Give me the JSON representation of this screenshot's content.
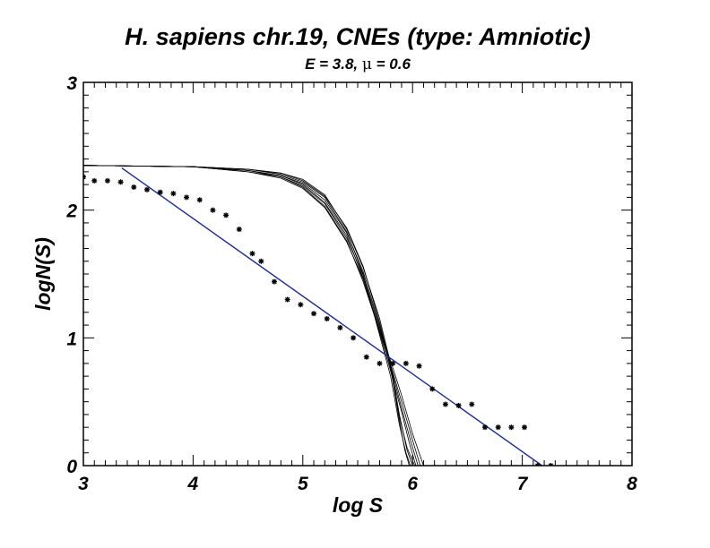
{
  "chart_data": {
    "type": "line",
    "title": "H. sapiens chr.19, CNEs (type: Amniotic)",
    "subtitle": {
      "prefix": "E = 3.8, ",
      "symbol": "μ",
      "suffix": " = 0.6"
    },
    "xlabel": "log S",
    "ylabel": "logN(S)",
    "xlim": [
      3,
      8
    ],
    "ylim": [
      0,
      3
    ],
    "x_ticks": [
      "3",
      "4",
      "5",
      "6",
      "7",
      "8"
    ],
    "y_ticks": [
      "0",
      "1",
      "2",
      "3"
    ],
    "colors": {
      "fit": "#1a2aa0",
      "model": "#000000",
      "points": "#000000"
    },
    "series": [
      {
        "kind": "scatter",
        "x": [
          3.0,
          3.1,
          3.22,
          3.34,
          3.46,
          3.58,
          3.7,
          3.82,
          3.94,
          4.06,
          4.18,
          4.3,
          4.42,
          4.54,
          4.62,
          4.74,
          4.86,
          4.98,
          5.1,
          5.22,
          5.34,
          5.46,
          5.58,
          5.7,
          5.82,
          5.94,
          6.06,
          6.18,
          6.3,
          6.42,
          6.54,
          6.66,
          6.78,
          6.9,
          7.02,
          7.14,
          7.26
        ],
        "y": [
          2.26,
          2.23,
          2.23,
          2.22,
          2.18,
          2.16,
          2.14,
          2.13,
          2.1,
          2.08,
          2.0,
          1.96,
          1.85,
          1.66,
          1.6,
          1.44,
          1.3,
          1.26,
          1.19,
          1.15,
          1.08,
          1.0,
          0.85,
          0.8,
          0.8,
          0.8,
          0.78,
          0.6,
          0.48,
          0.47,
          0.48,
          0.3,
          0.3,
          0.3,
          0.3,
          0.0,
          0.0
        ]
      },
      {
        "kind": "fit-line",
        "x": [
          3.35,
          7.18
        ],
        "y": [
          2.33,
          0.0
        ]
      },
      {
        "kind": "model-curves",
        "curves": [
          {
            "x": [
              3.0,
              4.0,
              4.5,
              4.8,
              5.0,
              5.2,
              5.4,
              5.55,
              5.7,
              5.8,
              5.88,
              5.95,
              6.0
            ],
            "y": [
              2.35,
              2.34,
              2.32,
              2.29,
              2.24,
              2.12,
              1.85,
              1.55,
              1.15,
              0.8,
              0.4,
              0.12,
              0.0
            ]
          },
          {
            "x": [
              3.0,
              4.0,
              4.5,
              4.8,
              5.0,
              5.2,
              5.4,
              5.55,
              5.7,
              5.8,
              5.88,
              5.95,
              6.02
            ],
            "y": [
              2.35,
              2.34,
              2.31,
              2.27,
              2.21,
              2.08,
              1.82,
              1.52,
              1.1,
              0.76,
              0.38,
              0.14,
              0.0
            ]
          },
          {
            "x": [
              3.0,
              4.0,
              4.5,
              4.8,
              5.0,
              5.2,
              5.4,
              5.55,
              5.7,
              5.8,
              5.9,
              5.98,
              6.05
            ],
            "y": [
              2.35,
              2.34,
              2.31,
              2.26,
              2.19,
              2.05,
              1.78,
              1.49,
              1.08,
              0.78,
              0.45,
              0.2,
              0.0
            ]
          },
          {
            "x": [
              3.0,
              4.0,
              4.5,
              4.8,
              5.0,
              5.2,
              5.4,
              5.55,
              5.7,
              5.8,
              5.9,
              6.0,
              6.1
            ],
            "y": [
              2.35,
              2.34,
              2.3,
              2.25,
              2.17,
              2.02,
              1.75,
              1.46,
              1.06,
              0.82,
              0.55,
              0.25,
              0.0
            ]
          },
          {
            "x": [
              3.0,
              4.0,
              4.5,
              4.8,
              5.0,
              5.2,
              5.4,
              5.55,
              5.7,
              5.8,
              5.88,
              5.94,
              5.98
            ],
            "y": [
              2.35,
              2.34,
              2.32,
              2.28,
              2.22,
              2.1,
              1.83,
              1.5,
              1.02,
              0.7,
              0.32,
              0.1,
              0.0
            ]
          },
          {
            "x": [
              3.0,
              4.0,
              4.5,
              4.8,
              5.0,
              5.2,
              5.4,
              5.55,
              5.7,
              5.8,
              5.9,
              5.97,
              6.03
            ],
            "y": [
              2.35,
              2.34,
              2.31,
              2.27,
              2.2,
              2.06,
              1.8,
              1.47,
              1.04,
              0.74,
              0.42,
              0.18,
              0.0
            ]
          },
          {
            "x": [
              3.0,
              4.0,
              4.5,
              4.8,
              5.0,
              5.2,
              5.4,
              5.55,
              5.7,
              5.8,
              5.9,
              6.0,
              6.07
            ],
            "y": [
              2.35,
              2.34,
              2.3,
              2.26,
              2.18,
              2.03,
              1.76,
              1.44,
              1.05,
              0.79,
              0.5,
              0.2,
              0.0
            ]
          },
          {
            "x": [
              3.0,
              4.0,
              4.5,
              4.8,
              5.0,
              5.2,
              5.4,
              5.55,
              5.7,
              5.8,
              5.87,
              5.93,
              5.97
            ],
            "y": [
              2.35,
              2.34,
              2.32,
              2.29,
              2.23,
              2.11,
              1.86,
              1.56,
              1.12,
              0.78,
              0.4,
              0.12,
              0.0
            ]
          }
        ]
      }
    ]
  }
}
